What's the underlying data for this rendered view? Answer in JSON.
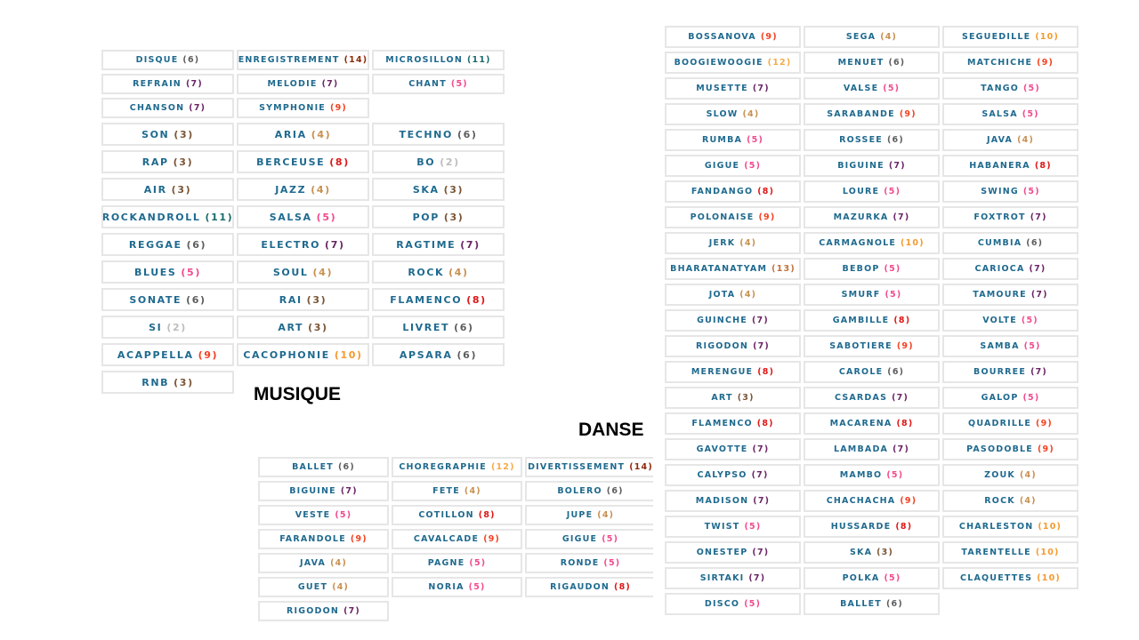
{
  "titles": {
    "musique": "MUSIQUE",
    "danse": "DANSE"
  },
  "count_colors": {
    "2": "#bdbdbd",
    "3": "#7a5535",
    "4": "#c8904f",
    "5": "#f24a8e",
    "6": "#5d5d5d",
    "7": "#6b2465",
    "8": "#e01515",
    "9": "#f4401e",
    "10": "#f59a2e",
    "11": "#1b6b6b",
    "12": "#f6aa48",
    "13": "#c0703a",
    "14": "#8f2a0a"
  },
  "musique_small": [
    {
      "w": "DISQUE",
      "c": 6
    },
    {
      "w": "ENREGISTREMENT",
      "c": 14
    },
    {
      "w": "MICROSILLON",
      "c": 11
    },
    {
      "w": "REFRAIN",
      "c": 7
    },
    {
      "w": "MELODIE",
      "c": 7
    },
    {
      "w": "CHANT",
      "c": 5
    },
    {
      "w": "CHANSON",
      "c": 7
    },
    {
      "w": "SYMPHONIE",
      "c": 9
    }
  ],
  "musique": [
    {
      "w": "SON",
      "c": 3
    },
    {
      "w": "ARIA",
      "c": 4
    },
    {
      "w": "TECHNO",
      "c": 6
    },
    {
      "w": "RAP",
      "c": 3
    },
    {
      "w": "BERCEUSE",
      "c": 8
    },
    {
      "w": "BO",
      "c": 2
    },
    {
      "w": "AIR",
      "c": 3
    },
    {
      "w": "JAZZ",
      "c": 4
    },
    {
      "w": "SKA",
      "c": 3
    },
    {
      "w": "ROCKANDROLL",
      "c": 11
    },
    {
      "w": "SALSA",
      "c": 5
    },
    {
      "w": "POP",
      "c": 3
    },
    {
      "w": "REGGAE",
      "c": 6
    },
    {
      "w": "ELECTRO",
      "c": 7
    },
    {
      "w": "RAGTIME",
      "c": 7
    },
    {
      "w": "BLUES",
      "c": 5
    },
    {
      "w": "SOUL",
      "c": 4
    },
    {
      "w": "ROCK",
      "c": 4
    },
    {
      "w": "SONATE",
      "c": 6
    },
    {
      "w": "RAI",
      "c": 3
    },
    {
      "w": "FLAMENCO",
      "c": 8
    },
    {
      "w": "SI",
      "c": 2
    },
    {
      "w": "ART",
      "c": 3
    },
    {
      "w": "LIVRET",
      "c": 6
    },
    {
      "w": "ACAPPELLA",
      "c": 9
    },
    {
      "w": "CACOPHONIE",
      "c": 10
    },
    {
      "w": "APSARA",
      "c": 6
    },
    {
      "w": "RNB",
      "c": 3
    }
  ],
  "danse": [
    {
      "w": "BOSSANOVA",
      "c": 9
    },
    {
      "w": "SEGA",
      "c": 4
    },
    {
      "w": "SEGUEDILLE",
      "c": 10
    },
    {
      "w": "BOOGIEWOOGIE",
      "c": 12
    },
    {
      "w": "MENUET",
      "c": 6
    },
    {
      "w": "MATCHICHE",
      "c": 9
    },
    {
      "w": "MUSETTE",
      "c": 7
    },
    {
      "w": "VALSE",
      "c": 5
    },
    {
      "w": "TANGO",
      "c": 5
    },
    {
      "w": "SLOW",
      "c": 4
    },
    {
      "w": "SARABANDE",
      "c": 9
    },
    {
      "w": "SALSA",
      "c": 5
    },
    {
      "w": "RUMBA",
      "c": 5
    },
    {
      "w": "ROSSEE",
      "c": 6
    },
    {
      "w": "JAVA",
      "c": 4
    },
    {
      "w": "GIGUE",
      "c": 5
    },
    {
      "w": "BIGUINE",
      "c": 7
    },
    {
      "w": "HABANERA",
      "c": 8
    },
    {
      "w": "FANDANGO",
      "c": 8
    },
    {
      "w": "LOURE",
      "c": 5
    },
    {
      "w": "SWING",
      "c": 5
    },
    {
      "w": "POLONAISE",
      "c": 9
    },
    {
      "w": "MAZURKA",
      "c": 7
    },
    {
      "w": "FOXTROT",
      "c": 7
    },
    {
      "w": "JERK",
      "c": 4
    },
    {
      "w": "CARMAGNOLE",
      "c": 10
    },
    {
      "w": "CUMBIA",
      "c": 6
    },
    {
      "w": "BHARATANATYAM",
      "c": 13
    },
    {
      "w": "BEBOP",
      "c": 5
    },
    {
      "w": "CARIOCA",
      "c": 7
    },
    {
      "w": "JOTA",
      "c": 4
    },
    {
      "w": "SMURF",
      "c": 5
    },
    {
      "w": "TAMOURE",
      "c": 7
    },
    {
      "w": "GUINCHE",
      "c": 7
    },
    {
      "w": "GAMBILLE",
      "c": 8
    },
    {
      "w": "VOLTE",
      "c": 5
    },
    {
      "w": "RIGODON",
      "c": 7
    },
    {
      "w": "SABOTIERE",
      "c": 9
    },
    {
      "w": "SAMBA",
      "c": 5
    },
    {
      "w": "MERENGUE",
      "c": 8
    },
    {
      "w": "CAROLE",
      "c": 6
    },
    {
      "w": "BOURREE",
      "c": 7
    },
    {
      "w": "ART",
      "c": 3
    },
    {
      "w": "CSARDAS",
      "c": 7
    },
    {
      "w": "GALOP",
      "c": 5
    },
    {
      "w": "FLAMENCO",
      "c": 8
    },
    {
      "w": "MACARENA",
      "c": 8
    },
    {
      "w": "QUADRILLE",
      "c": 9
    },
    {
      "w": "GAVOTTE",
      "c": 7
    },
    {
      "w": "LAMBADA",
      "c": 7
    },
    {
      "w": "PASODOBLE",
      "c": 9
    },
    {
      "w": "CALYPSO",
      "c": 7
    },
    {
      "w": "MAMBO",
      "c": 5
    },
    {
      "w": "ZOUK",
      "c": 4
    },
    {
      "w": "MADISON",
      "c": 7
    },
    {
      "w": "CHACHACHA",
      "c": 9
    },
    {
      "w": "ROCK",
      "c": 4
    },
    {
      "w": "TWIST",
      "c": 5
    },
    {
      "w": "HUSSARDE",
      "c": 8
    },
    {
      "w": "CHARLESTON",
      "c": 10
    },
    {
      "w": "ONESTEP",
      "c": 7
    },
    {
      "w": "SKA",
      "c": 3
    },
    {
      "w": "TARENTELLE",
      "c": 10
    },
    {
      "w": "SIRTAKI",
      "c": 7
    },
    {
      "w": "POLKA",
      "c": 5
    },
    {
      "w": "CLAQUETTES",
      "c": 10
    },
    {
      "w": "DISCO",
      "c": 5
    },
    {
      "w": "BALLET",
      "c": 6
    }
  ],
  "bal": [
    {
      "w": "BALLET",
      "c": 6
    },
    {
      "w": "CHOREGRAPHIE",
      "c": 12
    },
    {
      "w": "DIVERTISSEMENT",
      "c": 14
    },
    {
      "w": "BIGUINE",
      "c": 7
    },
    {
      "w": "FETE",
      "c": 4
    },
    {
      "w": "BOLERO",
      "c": 6
    },
    {
      "w": "VESTE",
      "c": 5
    },
    {
      "w": "COTILLON",
      "c": 8
    },
    {
      "w": "JUPE",
      "c": 4
    },
    {
      "w": "FARANDOLE",
      "c": 9
    },
    {
      "w": "CAVALCADE",
      "c": 9
    },
    {
      "w": "GIGUE",
      "c": 5
    },
    {
      "w": "JAVA",
      "c": 4
    },
    {
      "w": "PAGNE",
      "c": 5
    },
    {
      "w": "RONDE",
      "c": 5
    },
    {
      "w": "GUET",
      "c": 4
    },
    {
      "w": "NORIA",
      "c": 5
    },
    {
      "w": "RIGAUDON",
      "c": 8
    },
    {
      "w": "RIGODON",
      "c": 7
    }
  ]
}
